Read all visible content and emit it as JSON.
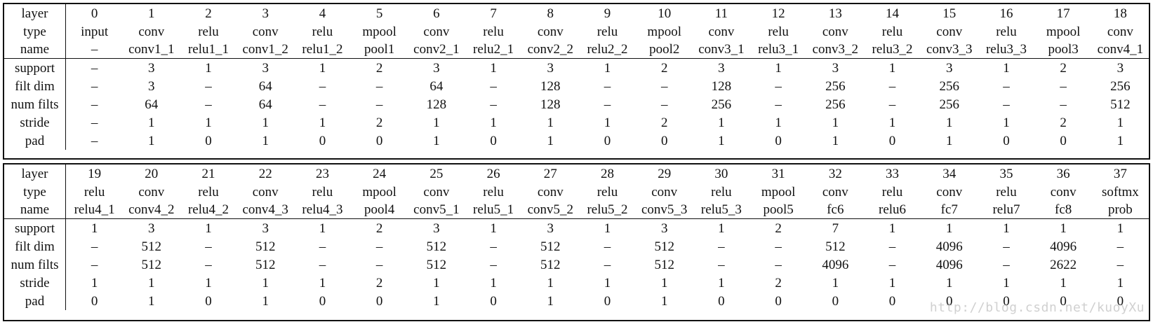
{
  "row_labels": [
    "layer",
    "type",
    "name",
    "support",
    "filt dim",
    "num filts",
    "stride",
    "pad"
  ],
  "tables": [
    {
      "layer": [
        "0",
        "1",
        "2",
        "3",
        "4",
        "5",
        "6",
        "7",
        "8",
        "9",
        "10",
        "11",
        "12",
        "13",
        "14",
        "15",
        "16",
        "17",
        "18"
      ],
      "type": [
        "input",
        "conv",
        "relu",
        "conv",
        "relu",
        "mpool",
        "conv",
        "relu",
        "conv",
        "relu",
        "mpool",
        "conv",
        "relu",
        "conv",
        "relu",
        "conv",
        "relu",
        "mpool",
        "conv"
      ],
      "name": [
        "–",
        "conv1_1",
        "relu1_1",
        "conv1_2",
        "relu1_2",
        "pool1",
        "conv2_1",
        "relu2_1",
        "conv2_2",
        "relu2_2",
        "pool2",
        "conv3_1",
        "relu3_1",
        "conv3_2",
        "relu3_2",
        "conv3_3",
        "relu3_3",
        "pool3",
        "conv4_1"
      ],
      "support": [
        "–",
        "3",
        "1",
        "3",
        "1",
        "2",
        "3",
        "1",
        "3",
        "1",
        "2",
        "3",
        "1",
        "3",
        "1",
        "3",
        "1",
        "2",
        "3"
      ],
      "filt_dim": [
        "–",
        "3",
        "–",
        "64",
        "–",
        "–",
        "64",
        "–",
        "128",
        "–",
        "–",
        "128",
        "–",
        "256",
        "–",
        "256",
        "–",
        "–",
        "256"
      ],
      "num_filts": [
        "–",
        "64",
        "–",
        "64",
        "–",
        "–",
        "128",
        "–",
        "128",
        "–",
        "–",
        "256",
        "–",
        "256",
        "–",
        "256",
        "–",
        "–",
        "512"
      ],
      "stride": [
        "–",
        "1",
        "1",
        "1",
        "1",
        "2",
        "1",
        "1",
        "1",
        "1",
        "2",
        "1",
        "1",
        "1",
        "1",
        "1",
        "1",
        "2",
        "1"
      ],
      "pad": [
        "–",
        "1",
        "0",
        "1",
        "0",
        "0",
        "1",
        "0",
        "1",
        "0",
        "0",
        "1",
        "0",
        "1",
        "0",
        "1",
        "0",
        "0",
        "1"
      ]
    },
    {
      "layer": [
        "19",
        "20",
        "21",
        "22",
        "23",
        "24",
        "25",
        "26",
        "27",
        "28",
        "29",
        "30",
        "31",
        "32",
        "33",
        "34",
        "35",
        "36",
        "37"
      ],
      "type": [
        "relu",
        "conv",
        "relu",
        "conv",
        "relu",
        "mpool",
        "conv",
        "relu",
        "conv",
        "relu",
        "conv",
        "relu",
        "mpool",
        "conv",
        "relu",
        "conv",
        "relu",
        "conv",
        "softmx"
      ],
      "name": [
        "relu4_1",
        "conv4_2",
        "relu4_2",
        "conv4_3",
        "relu4_3",
        "pool4",
        "conv5_1",
        "relu5_1",
        "conv5_2",
        "relu5_2",
        "conv5_3",
        "relu5_3",
        "pool5",
        "fc6",
        "relu6",
        "fc7",
        "relu7",
        "fc8",
        "prob"
      ],
      "support": [
        "1",
        "3",
        "1",
        "3",
        "1",
        "2",
        "3",
        "1",
        "3",
        "1",
        "3",
        "1",
        "2",
        "7",
        "1",
        "1",
        "1",
        "1",
        "1"
      ],
      "filt_dim": [
        "–",
        "512",
        "–",
        "512",
        "–",
        "–",
        "512",
        "–",
        "512",
        "–",
        "512",
        "–",
        "–",
        "512",
        "–",
        "4096",
        "–",
        "4096",
        "–"
      ],
      "num_filts": [
        "–",
        "512",
        "–",
        "512",
        "–",
        "–",
        "512",
        "–",
        "512",
        "–",
        "512",
        "–",
        "–",
        "4096",
        "–",
        "4096",
        "–",
        "2622",
        "–"
      ],
      "stride": [
        "1",
        "1",
        "1",
        "1",
        "1",
        "2",
        "1",
        "1",
        "1",
        "1",
        "1",
        "1",
        "2",
        "1",
        "1",
        "1",
        "1",
        "1",
        "1"
      ],
      "pad": [
        "0",
        "1",
        "0",
        "1",
        "0",
        "0",
        "1",
        "0",
        "1",
        "0",
        "1",
        "0",
        "0",
        "0",
        "0",
        "0",
        "0",
        "0",
        "0"
      ]
    }
  ],
  "watermark": "http://blog.csdn.net/kuoyXu"
}
